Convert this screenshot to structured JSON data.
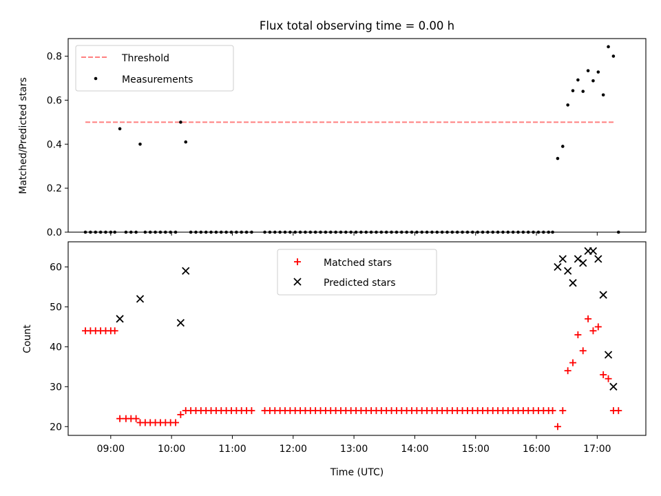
{
  "chart_data": [
    {
      "type": "scatter",
      "title": "Flux total observing time = 0.00 h",
      "xlabel": "",
      "ylabel": "Matched/Predicted stars",
      "xlim": [
        "08:18",
        "17:48"
      ],
      "ylim": [
        0,
        0.88
      ],
      "yticks": [
        0.0,
        0.2,
        0.4,
        0.6,
        0.8
      ],
      "ytick_labels": [
        "0.0",
        "0.2",
        "0.4",
        "0.6",
        "0.8"
      ],
      "grid": false,
      "legend_location": "upper left",
      "threshold": {
        "name": "Threshold",
        "value": 0.5,
        "x_range": [
          "08:35",
          "17:18"
        ],
        "color": "#ff7f7f",
        "style": "dashed"
      },
      "series": [
        {
          "name": "Measurements",
          "color": "#000000",
          "marker": "dot",
          "points": [
            [
              "08:35",
              0
            ],
            [
              "08:40",
              0
            ],
            [
              "08:45",
              0
            ],
            [
              "08:50",
              0
            ],
            [
              "08:55",
              0
            ],
            [
              "09:00",
              0
            ],
            [
              "09:04",
              0
            ],
            [
              "09:09",
              0.47
            ],
            [
              "09:15",
              0
            ],
            [
              "09:20",
              0
            ],
            [
              "09:25",
              0
            ],
            [
              "09:29",
              0.4
            ],
            [
              "09:34",
              0
            ],
            [
              "09:39",
              0
            ],
            [
              "09:44",
              0
            ],
            [
              "09:49",
              0
            ],
            [
              "09:54",
              0
            ],
            [
              "09:59",
              0
            ],
            [
              "10:04",
              0
            ],
            [
              "10:09",
              0.5
            ],
            [
              "10:14",
              0.41
            ],
            [
              "10:19",
              0
            ],
            [
              "10:24",
              0
            ],
            [
              "10:29",
              0
            ],
            [
              "10:34",
              0
            ],
            [
              "10:39",
              0
            ],
            [
              "10:44",
              0
            ],
            [
              "10:49",
              0
            ],
            [
              "10:54",
              0
            ],
            [
              "10:59",
              0
            ],
            [
              "11:04",
              0
            ],
            [
              "11:09",
              0
            ],
            [
              "11:14",
              0
            ],
            [
              "11:19",
              0
            ],
            [
              "11:32",
              0
            ],
            [
              "11:37",
              0
            ],
            [
              "11:42",
              0
            ],
            [
              "11:47",
              0
            ],
            [
              "11:52",
              0
            ],
            [
              "11:57",
              0
            ],
            [
              "12:02",
              0
            ],
            [
              "12:07",
              0
            ],
            [
              "12:12",
              0
            ],
            [
              "12:17",
              0
            ],
            [
              "12:22",
              0
            ],
            [
              "12:27",
              0
            ],
            [
              "12:32",
              0
            ],
            [
              "12:37",
              0
            ],
            [
              "12:42",
              0
            ],
            [
              "12:47",
              0
            ],
            [
              "12:52",
              0
            ],
            [
              "12:57",
              0
            ],
            [
              "13:02",
              0
            ],
            [
              "13:07",
              0
            ],
            [
              "13:12",
              0
            ],
            [
              "13:17",
              0
            ],
            [
              "13:22",
              0
            ],
            [
              "13:27",
              0
            ],
            [
              "13:32",
              0
            ],
            [
              "13:37",
              0
            ],
            [
              "13:42",
              0
            ],
            [
              "13:47",
              0
            ],
            [
              "13:52",
              0
            ],
            [
              "13:57",
              0
            ],
            [
              "14:02",
              0
            ],
            [
              "14:07",
              0
            ],
            [
              "14:12",
              0
            ],
            [
              "14:17",
              0
            ],
            [
              "14:22",
              0
            ],
            [
              "14:27",
              0
            ],
            [
              "14:32",
              0
            ],
            [
              "14:37",
              0
            ],
            [
              "14:42",
              0
            ],
            [
              "14:47",
              0
            ],
            [
              "14:52",
              0
            ],
            [
              "14:57",
              0
            ],
            [
              "15:02",
              0
            ],
            [
              "15:07",
              0
            ],
            [
              "15:12",
              0
            ],
            [
              "15:17",
              0
            ],
            [
              "15:22",
              0
            ],
            [
              "15:27",
              0
            ],
            [
              "15:32",
              0
            ],
            [
              "15:37",
              0
            ],
            [
              "15:42",
              0
            ],
            [
              "15:47",
              0
            ],
            [
              "15:52",
              0
            ],
            [
              "15:57",
              0
            ],
            [
              "16:02",
              0
            ],
            [
              "16:07",
              0
            ],
            [
              "16:12",
              0
            ],
            [
              "16:16",
              0
            ],
            [
              "16:21",
              0.335
            ],
            [
              "16:26",
              0.39
            ],
            [
              "16:31",
              0.578
            ],
            [
              "16:36",
              0.643
            ],
            [
              "16:41",
              0.692
            ],
            [
              "16:46",
              0.64
            ],
            [
              "16:51",
              0.734
            ],
            [
              "16:56",
              0.688
            ],
            [
              "17:01",
              0.728
            ],
            [
              "17:06",
              0.624
            ],
            [
              "17:11",
              0.843
            ],
            [
              "17:16",
              0.8
            ],
            [
              "17:21",
              0
            ]
          ]
        }
      ]
    },
    {
      "type": "scatter",
      "title": "",
      "xlabel": "Time (UTC)",
      "ylabel": "Count",
      "xlim": [
        "08:18",
        "17:48"
      ],
      "ylim": [
        17.8,
        66.3
      ],
      "yticks": [
        20,
        30,
        40,
        50,
        60
      ],
      "ytick_labels": [
        "20",
        "30",
        "40",
        "50",
        "60"
      ],
      "xticks": [
        "09:00",
        "10:00",
        "11:00",
        "12:00",
        "13:00",
        "14:00",
        "15:00",
        "16:00",
        "17:00"
      ],
      "xtick_labels": [
        "09:00",
        "10:00",
        "11:00",
        "12:00",
        "13:00",
        "14:00",
        "15:00",
        "16:00",
        "17:00"
      ],
      "grid": false,
      "legend_location": "upper center",
      "series": [
        {
          "name": "Matched stars",
          "color": "#ff0000",
          "marker": "plus",
          "points": [
            [
              "08:35",
              44
            ],
            [
              "08:40",
              44
            ],
            [
              "08:45",
              44
            ],
            [
              "08:50",
              44
            ],
            [
              "08:55",
              44
            ],
            [
              "09:00",
              44
            ],
            [
              "09:04",
              44
            ],
            [
              "09:09",
              22
            ],
            [
              "09:15",
              22
            ],
            [
              "09:20",
              22
            ],
            [
              "09:25",
              22
            ],
            [
              "09:29",
              21
            ],
            [
              "09:34",
              21
            ],
            [
              "09:39",
              21
            ],
            [
              "09:44",
              21
            ],
            [
              "09:49",
              21
            ],
            [
              "09:54",
              21
            ],
            [
              "09:59",
              21
            ],
            [
              "10:04",
              21
            ],
            [
              "10:09",
              23
            ],
            [
              "10:14",
              24
            ],
            [
              "10:19",
              24
            ],
            [
              "10:24",
              24
            ],
            [
              "10:29",
              24
            ],
            [
              "10:34",
              24
            ],
            [
              "10:39",
              24
            ],
            [
              "10:44",
              24
            ],
            [
              "10:49",
              24
            ],
            [
              "10:54",
              24
            ],
            [
              "10:59",
              24
            ],
            [
              "11:04",
              24
            ],
            [
              "11:09",
              24
            ],
            [
              "11:14",
              24
            ],
            [
              "11:19",
              24
            ],
            [
              "11:32",
              24
            ],
            [
              "11:37",
              24
            ],
            [
              "11:42",
              24
            ],
            [
              "11:47",
              24
            ],
            [
              "11:52",
              24
            ],
            [
              "11:57",
              24
            ],
            [
              "12:02",
              24
            ],
            [
              "12:07",
              24
            ],
            [
              "12:12",
              24
            ],
            [
              "12:17",
              24
            ],
            [
              "12:22",
              24
            ],
            [
              "12:27",
              24
            ],
            [
              "12:32",
              24
            ],
            [
              "12:37",
              24
            ],
            [
              "12:42",
              24
            ],
            [
              "12:47",
              24
            ],
            [
              "12:52",
              24
            ],
            [
              "12:57",
              24
            ],
            [
              "13:02",
              24
            ],
            [
              "13:07",
              24
            ],
            [
              "13:12",
              24
            ],
            [
              "13:17",
              24
            ],
            [
              "13:22",
              24
            ],
            [
              "13:27",
              24
            ],
            [
              "13:32",
              24
            ],
            [
              "13:37",
              24
            ],
            [
              "13:42",
              24
            ],
            [
              "13:47",
              24
            ],
            [
              "13:52",
              24
            ],
            [
              "13:57",
              24
            ],
            [
              "14:02",
              24
            ],
            [
              "14:07",
              24
            ],
            [
              "14:12",
              24
            ],
            [
              "14:17",
              24
            ],
            [
              "14:22",
              24
            ],
            [
              "14:27",
              24
            ],
            [
              "14:32",
              24
            ],
            [
              "14:37",
              24
            ],
            [
              "14:42",
              24
            ],
            [
              "14:47",
              24
            ],
            [
              "14:52",
              24
            ],
            [
              "14:57",
              24
            ],
            [
              "15:02",
              24
            ],
            [
              "15:07",
              24
            ],
            [
              "15:12",
              24
            ],
            [
              "15:17",
              24
            ],
            [
              "15:22",
              24
            ],
            [
              "15:27",
              24
            ],
            [
              "15:32",
              24
            ],
            [
              "15:37",
              24
            ],
            [
              "15:42",
              24
            ],
            [
              "15:47",
              24
            ],
            [
              "15:52",
              24
            ],
            [
              "15:57",
              24
            ],
            [
              "16:02",
              24
            ],
            [
              "16:07",
              24
            ],
            [
              "16:12",
              24
            ],
            [
              "16:16",
              24
            ],
            [
              "16:21",
              20
            ],
            [
              "16:26",
              24
            ],
            [
              "16:31",
              34
            ],
            [
              "16:36",
              36
            ],
            [
              "16:41",
              43
            ],
            [
              "16:46",
              39
            ],
            [
              "16:51",
              47
            ],
            [
              "16:56",
              44
            ],
            [
              "17:01",
              45
            ],
            [
              "17:06",
              33
            ],
            [
              "17:11",
              32
            ],
            [
              "17:16",
              24
            ],
            [
              "17:21",
              24
            ]
          ]
        },
        {
          "name": "Predicted stars",
          "color": "#000000",
          "marker": "x",
          "points": [
            [
              "09:09",
              47
            ],
            [
              "09:29",
              52
            ],
            [
              "10:09",
              46
            ],
            [
              "10:14",
              59
            ],
            [
              "16:21",
              60
            ],
            [
              "16:26",
              62
            ],
            [
              "16:31",
              59
            ],
            [
              "16:36",
              56
            ],
            [
              "16:41",
              62
            ],
            [
              "16:46",
              61
            ],
            [
              "16:51",
              64
            ],
            [
              "16:56",
              64
            ],
            [
              "17:01",
              62
            ],
            [
              "17:06",
              53
            ],
            [
              "17:11",
              38
            ],
            [
              "17:16",
              30
            ]
          ]
        }
      ]
    }
  ]
}
